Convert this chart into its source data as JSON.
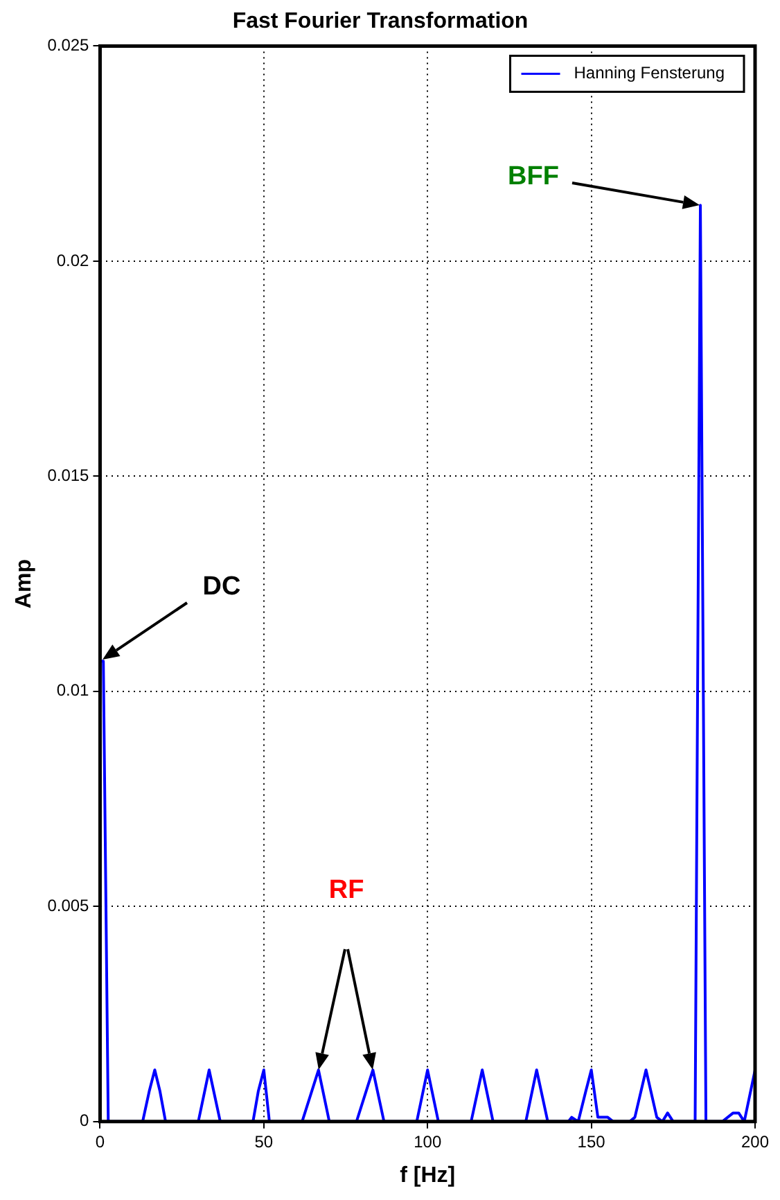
{
  "chart_data": {
    "type": "line",
    "title": "Fast Fourier Transformation",
    "xlabel": "f [Hz]",
    "ylabel": "Amp",
    "xlim": [
      0,
      200
    ],
    "xticks": [
      0,
      50,
      100,
      150,
      200
    ],
    "ylim": [
      0,
      0.025
    ],
    "yticks": [
      0,
      0.005,
      0.01,
      0.015,
      0.02,
      0.025
    ],
    "grid": true,
    "legend": "top right",
    "marker": "none",
    "line_style": "solid",
    "series": [
      {
        "name": "Hanning Fensterung",
        "color": "#0000ff",
        "x": [
          0,
          1,
          2.5,
          13,
          15,
          16.7,
          18.3,
          20,
          30,
          33.3,
          36.7,
          46.7,
          48.3,
          50,
          51.7,
          61.7,
          66.7,
          70,
          78.3,
          83.3,
          86.7,
          96.7,
          100,
          103.3,
          113.3,
          116.7,
          120,
          130,
          133.3,
          136.7,
          143,
          144,
          146,
          148.3,
          150,
          152,
          155,
          156.7,
          161.7,
          163.3,
          166.7,
          170,
          171.7,
          173.3,
          175,
          180,
          181.7,
          183.3,
          185,
          186.7,
          190,
          193.3,
          195,
          196.7,
          200
        ],
        "values": [
          0.0107,
          0.0107,
          0,
          0,
          0.0007,
          0.0012,
          0.0007,
          0,
          0,
          0.0012,
          0,
          0,
          0.0007,
          0.0012,
          0,
          0,
          0.0012,
          0,
          0,
          0.0012,
          0,
          0,
          0.0012,
          0,
          0,
          0.0012,
          0,
          0,
          0.0012,
          0,
          0,
          0.0001,
          0,
          0.0007,
          0.0012,
          0.0001,
          0.0001,
          0,
          0,
          0.0001,
          0.0012,
          0.0001,
          0,
          0.0002,
          0,
          0,
          0,
          0.0213,
          0,
          0,
          0,
          0.0002,
          0.0002,
          0,
          0.0012
        ]
      }
    ],
    "annotations": [
      "DC",
      "BFF",
      "RF"
    ]
  }
}
